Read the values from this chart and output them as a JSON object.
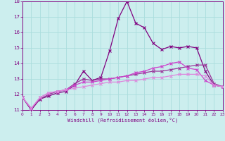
{
  "xlabel": "Windchill (Refroidissement éolien,°C)",
  "x": [
    0,
    1,
    2,
    3,
    4,
    5,
    6,
    7,
    8,
    9,
    10,
    11,
    12,
    13,
    14,
    15,
    16,
    17,
    18,
    19,
    20,
    21,
    22,
    23
  ],
  "line1": [
    11.8,
    11.0,
    11.7,
    11.9,
    12.1,
    12.2,
    12.6,
    13.5,
    12.9,
    13.1,
    14.8,
    16.9,
    18.0,
    16.6,
    16.3,
    15.3,
    14.9,
    15.1,
    15.0,
    15.1,
    15.0,
    13.5,
    12.6,
    12.5
  ],
  "line2": [
    11.8,
    11.1,
    11.7,
    12.0,
    12.2,
    12.3,
    12.7,
    13.0,
    12.9,
    13.0,
    13.0,
    13.1,
    13.2,
    13.3,
    13.4,
    13.5,
    13.5,
    13.6,
    13.7,
    13.8,
    13.9,
    13.9,
    12.7,
    12.5
  ],
  "line3": [
    11.8,
    11.1,
    11.8,
    12.1,
    12.2,
    12.3,
    12.6,
    12.8,
    12.8,
    12.9,
    13.0,
    13.1,
    13.2,
    13.4,
    13.5,
    13.7,
    13.8,
    14.0,
    14.1,
    13.7,
    13.6,
    12.9,
    12.6,
    12.5
  ],
  "line4": [
    11.8,
    11.1,
    11.8,
    12.1,
    12.2,
    12.3,
    12.4,
    12.5,
    12.6,
    12.7,
    12.8,
    12.8,
    12.9,
    12.9,
    13.0,
    13.1,
    13.1,
    13.2,
    13.3,
    13.3,
    13.3,
    13.2,
    12.6,
    12.5
  ],
  "line_color1": "#800080",
  "line_color2": "#993399",
  "line_color3": "#cc44cc",
  "line_color4": "#dd88dd",
  "bg_color": "#cceeee",
  "grid_color": "#aadddd",
  "axis_color": "#800080",
  "text_color": "#800080",
  "ylim": [
    11,
    18
  ],
  "xlim": [
    0,
    23
  ],
  "yticks": [
    11,
    12,
    13,
    14,
    15,
    16,
    17,
    18
  ],
  "xticks": [
    0,
    1,
    2,
    3,
    4,
    5,
    6,
    7,
    8,
    9,
    10,
    11,
    12,
    13,
    14,
    15,
    16,
    17,
    18,
    19,
    20,
    21,
    22,
    23
  ]
}
